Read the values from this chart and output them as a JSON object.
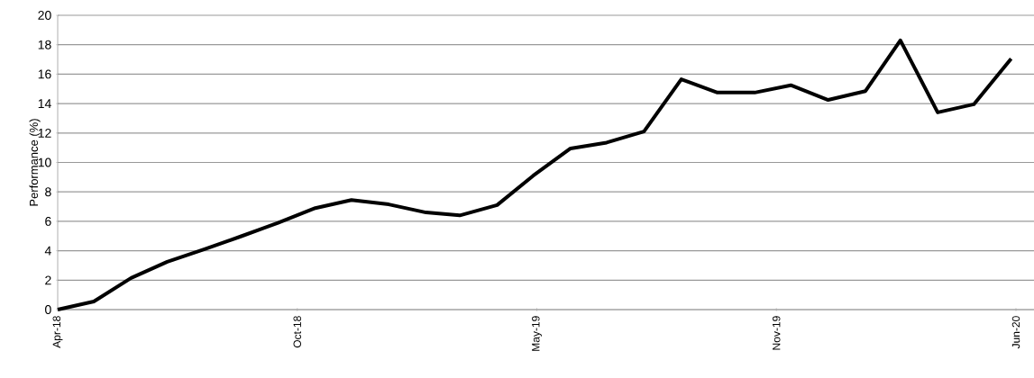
{
  "chart_data": {
    "type": "line",
    "ylabel": "Performance (%)",
    "x": [
      "2018-04-01",
      "2018-05-01",
      "2018-06-01",
      "2018-07-01",
      "2018-08-01",
      "2018-09-01",
      "2018-10-01",
      "2018-11-01",
      "2018-12-01",
      "2019-01-01",
      "2019-02-01",
      "2019-03-01",
      "2019-04-01",
      "2019-05-01",
      "2019-06-01",
      "2019-07-01",
      "2019-08-01",
      "2019-09-01",
      "2019-10-01",
      "2019-11-01",
      "2019-12-01",
      "2020-01-01",
      "2020-02-01",
      "2020-03-01",
      "2020-04-01",
      "2020-05-01",
      "2020-06-01"
    ],
    "values": [
      0,
      0.55,
      2.15,
      3.25,
      4.1,
      5.0,
      5.9,
      6.9,
      7.45,
      7.15,
      6.6,
      6.4,
      7.1,
      9.1,
      10.95,
      11.35,
      12.1,
      15.65,
      14.75,
      14.75,
      15.25,
      14.25,
      14.85,
      18.3,
      13.4,
      13.95,
      17.05
    ],
    "color": "#000000",
    "xlim": [
      "2018-04-01",
      "2020-06-20"
    ],
    "ylim": [
      0,
      20
    ],
    "xticks": [
      {
        "value": "2018-04-01",
        "label": "Apr-18"
      },
      {
        "value": "2018-10-17",
        "label": "Oct-18"
      },
      {
        "value": "2019-05-04",
        "label": "May-19"
      },
      {
        "value": "2019-11-19",
        "label": "Nov-19"
      },
      {
        "value": "2020-06-05",
        "label": "Jun-20"
      }
    ],
    "yticks": [
      0,
      2,
      4,
      6,
      8,
      10,
      12,
      14,
      16,
      18,
      20
    ],
    "grid": "y"
  }
}
